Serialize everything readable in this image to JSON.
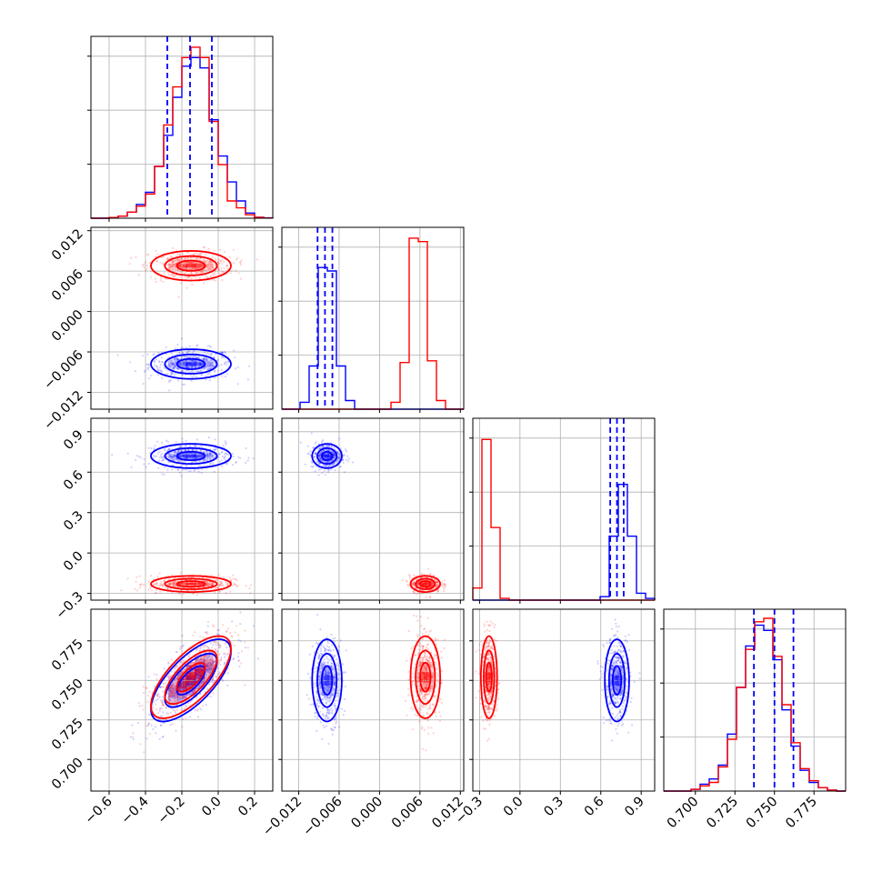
{
  "chart_data": {
    "type": "corner",
    "colors": {
      "series_a": "#0000ff",
      "series_b": "#ff0000"
    },
    "grid": true,
    "parameters": [
      {
        "range": [
          -0.7,
          0.3
        ],
        "ticks": [
          -0.6,
          -0.4,
          -0.2,
          0.0,
          0.2
        ],
        "tick_labels": [
          "−0.6",
          "−0.4",
          "−0.2",
          "0.0",
          "0.2"
        ]
      },
      {
        "range": [
          -0.0145,
          0.0125
        ],
        "ticks": [
          -0.012,
          -0.006,
          0.0,
          0.006,
          0.012
        ],
        "tick_labels": [
          "−0.012",
          "−0.006",
          "0.000",
          "0.006",
          "0.012"
        ]
      },
      {
        "range": [
          -0.35,
          1.0
        ],
        "ticks": [
          -0.3,
          0.0,
          0.3,
          0.6,
          0.9
        ],
        "tick_labels": [
          "−0.3",
          "0.0",
          "0.3",
          "0.6",
          "0.9"
        ]
      },
      {
        "range": [
          0.68,
          0.795
        ],
        "ticks": [
          0.7,
          0.725,
          0.75,
          0.775
        ],
        "tick_labels": [
          "0.700",
          "0.725",
          "0.750",
          "0.775"
        ]
      }
    ],
    "series": [
      {
        "color": "#0000ff",
        "means": [
          -0.15,
          -0.0078,
          0.72,
          0.75
        ],
        "stds": [
          0.11,
          0.0011,
          0.045,
          0.013
        ],
        "corr_0_3": 0.7,
        "quantiles": [
          [
            -0.28,
            -0.155,
            -0.035
          ],
          [
            -0.0092,
            -0.0081,
            -0.007
          ],
          [
            0.67,
            0.72,
            0.77
          ],
          [
            0.737,
            0.75,
            0.762
          ]
        ]
      },
      {
        "color": "#ff0000",
        "means": [
          -0.15,
          0.0068,
          -0.23,
          0.752
        ],
        "stds": [
          0.11,
          0.0011,
          0.03,
          0.013
        ],
        "corr_0_3": 0.7
      }
    ],
    "histograms": [
      {
        "param": 0,
        "bin_edges": [
          -0.7,
          -0.65,
          -0.6,
          -0.55,
          -0.5,
          -0.45,
          -0.4,
          -0.35,
          -0.3,
          -0.25,
          -0.2,
          -0.15,
          -0.1,
          -0.05,
          0.0,
          0.05,
          0.1,
          0.15,
          0.2,
          0.25,
          0.3
        ],
        "series_a": [
          0,
          0,
          0.004,
          0.012,
          0.035,
          0.08,
          0.15,
          0.3,
          0.48,
          0.7,
          0.88,
          0.93,
          0.87,
          0.57,
          0.36,
          0.21,
          0.1,
          0.03,
          0.006,
          0.002
        ],
        "series_b": [
          0,
          0,
          0.004,
          0.012,
          0.035,
          0.07,
          0.14,
          0.3,
          0.54,
          0.76,
          0.93,
          0.99,
          0.93,
          0.56,
          0.31,
          0.1,
          0.06,
          0.02,
          0.005,
          0.001
        ]
      },
      {
        "param": 1,
        "bin_edges": [
          -0.0145,
          -0.01315,
          -0.0118,
          -0.01045,
          -0.0091,
          -0.00775,
          -0.0064,
          -0.00505,
          -0.0037,
          -0.00235,
          -0.001,
          0.00035,
          0.0017,
          0.00305,
          0.0044,
          0.00575,
          0.0071,
          0.00845,
          0.0098,
          0.01115,
          0.0125
        ],
        "series_a": [
          0,
          0,
          0.04,
          0.25,
          0.82,
          0.8,
          0.25,
          0.05,
          0,
          0,
          0,
          0,
          0,
          0,
          0,
          0,
          0,
          0,
          0,
          0
        ],
        "series_b": [
          0,
          0,
          0,
          0,
          0,
          0,
          0,
          0,
          0,
          0,
          0,
          0,
          0.04,
          0.27,
          0.99,
          0.97,
          0.28,
          0.05,
          0,
          0
        ]
      },
      {
        "param": 2,
        "bin_edges": [
          -0.35,
          -0.2825,
          -0.215,
          -0.1475,
          -0.08,
          -0.0125,
          0.055,
          0.1225,
          0.19,
          0.2575,
          0.325,
          0.3925,
          0.46,
          0.5275,
          0.595,
          0.6625,
          0.73,
          0.7975,
          0.865,
          0.9325,
          1.0
        ],
        "series_a": [
          0,
          0,
          0,
          0,
          0,
          0,
          0,
          0,
          0,
          0,
          0,
          0,
          0,
          0,
          0.02,
          0.37,
          0.67,
          0.37,
          0.04,
          0.01
        ],
        "series_b": [
          0.07,
          0.93,
          0.42,
          0.01,
          0,
          0,
          0,
          0,
          0,
          0,
          0,
          0,
          0,
          0,
          0,
          0,
          0,
          0,
          0,
          0
        ]
      },
      {
        "param": 3,
        "bin_edges": [
          0.68,
          0.68575,
          0.6915,
          0.69725,
          0.703,
          0.70875,
          0.7145,
          0.72025,
          0.726,
          0.73175,
          0.7375,
          0.74325,
          0.749,
          0.75475,
          0.7605,
          0.76625,
          0.772,
          0.77775,
          0.7835,
          0.78925,
          0.795
        ],
        "series_a": [
          0,
          0,
          0,
          0.01,
          0.04,
          0.07,
          0.15,
          0.33,
          0.6,
          0.84,
          0.96,
          0.93,
          0.76,
          0.47,
          0.26,
          0.12,
          0.05,
          0.02,
          0.005,
          0
        ],
        "series_b": [
          0,
          0,
          0,
          0.01,
          0.03,
          0.05,
          0.14,
          0.3,
          0.6,
          0.82,
          0.98,
          1.0,
          0.78,
          0.5,
          0.28,
          0.13,
          0.06,
          0.02,
          0.005,
          0
        ]
      }
    ]
  }
}
